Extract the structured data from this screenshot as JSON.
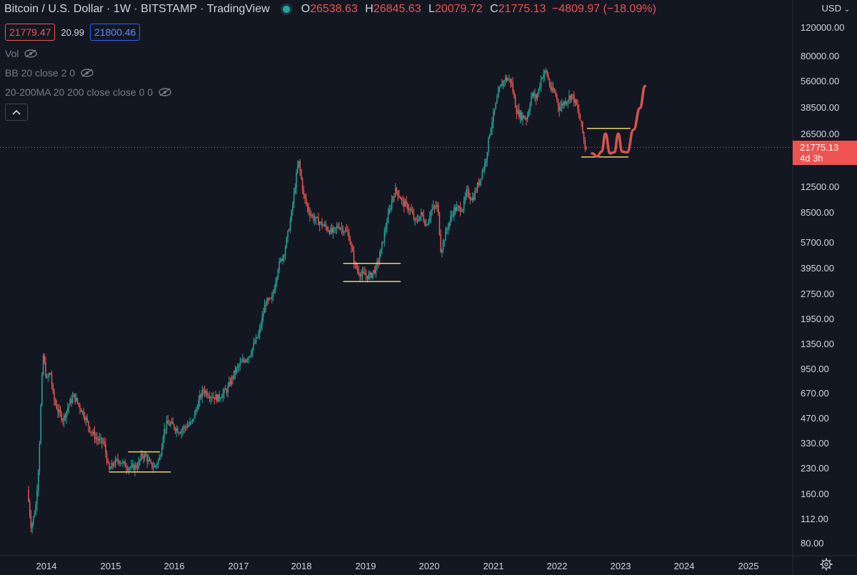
{
  "header": {
    "title": "Bitcoin / U.S. Dollar · 1W · BITSTAMP · TradingView",
    "ohlc": [
      {
        "k": "O",
        "v": "26538.63"
      },
      {
        "k": "H",
        "v": "26845.63"
      },
      {
        "k": "L",
        "v": "20079.72"
      },
      {
        "k": "C",
        "v": "21775.13"
      }
    ],
    "change": "−4809.97 (−18.09%)",
    "sell_price": "21779.47",
    "spread": "20.99",
    "buy_price": "21800.46",
    "currency": "USD"
  },
  "indicators": [
    {
      "label": "Vol"
    },
    {
      "label": "BB 20 close 2 0"
    },
    {
      "label": "20-200MA 20 200 close close 0 0"
    }
  ],
  "last_price": {
    "value": "21775.13",
    "countdown": "4d 3h"
  },
  "colors": {
    "background": "#131722",
    "up": "#26a69a",
    "down": "#ef5350",
    "levels": "#f0d264",
    "projection": "#d9534f",
    "price_line": "#ef5350"
  },
  "chart_data": {
    "type": "candlestick",
    "x_ticks": [
      "2014",
      "2015",
      "2016",
      "2017",
      "2018",
      "2019",
      "2020",
      "2021",
      "2022",
      "2023",
      "2024",
      "2025"
    ],
    "y_ticks": [
      "120000.00",
      "80000.00",
      "56000.00",
      "38500.00",
      "26500.00",
      "12500.00",
      "8500.00",
      "5700.00",
      "3950.00",
      "2750.00",
      "1950.00",
      "1350.00",
      "950.00",
      "670.00",
      "470.00",
      "330.00",
      "230.00",
      "160.00",
      "112.00",
      "80.00"
    ],
    "y_scale": "log",
    "y_range": [
      72,
      128000
    ],
    "x_range": [
      2013.72,
      2025.95
    ],
    "anchors": [
      [
        2013.72,
        170
      ],
      [
        2013.78,
        100
      ],
      [
        2013.85,
        130
      ],
      [
        2013.9,
        250
      ],
      [
        2013.94,
        700
      ],
      [
        2013.97,
        1150
      ],
      [
        2014.02,
        800
      ],
      [
        2014.08,
        900
      ],
      [
        2014.13,
        620
      ],
      [
        2014.2,
        520
      ],
      [
        2014.28,
        460
      ],
      [
        2014.38,
        580
      ],
      [
        2014.45,
        640
      ],
      [
        2014.5,
        590
      ],
      [
        2014.62,
        480
      ],
      [
        2014.7,
        400
      ],
      [
        2014.8,
        350
      ],
      [
        2014.92,
        330
      ],
      [
        2015.0,
        220
      ],
      [
        2015.05,
        240
      ],
      [
        2015.15,
        260
      ],
      [
        2015.25,
        240
      ],
      [
        2015.35,
        230
      ],
      [
        2015.45,
        240
      ],
      [
        2015.52,
        280
      ],
      [
        2015.58,
        270
      ],
      [
        2015.65,
        240
      ],
      [
        2015.72,
        235
      ],
      [
        2015.8,
        270
      ],
      [
        2015.85,
        380
      ],
      [
        2015.9,
        430
      ],
      [
        2015.97,
        430
      ],
      [
        2016.1,
        390
      ],
      [
        2016.3,
        440
      ],
      [
        2016.42,
        620
      ],
      [
        2016.48,
        700
      ],
      [
        2016.55,
        660
      ],
      [
        2016.7,
        620
      ],
      [
        2016.85,
        700
      ],
      [
        2016.97,
        900
      ],
      [
        2017.05,
        1000
      ],
      [
        2017.2,
        1150
      ],
      [
        2017.35,
        1550
      ],
      [
        2017.45,
        2400
      ],
      [
        2017.55,
        2500
      ],
      [
        2017.65,
        4000
      ],
      [
        2017.75,
        5000
      ],
      [
        2017.85,
        8000
      ],
      [
        2017.93,
        14000
      ],
      [
        2017.97,
        18000
      ],
      [
        2018.05,
        11000
      ],
      [
        2018.12,
        9000
      ],
      [
        2018.2,
        8000
      ],
      [
        2018.3,
        7500
      ],
      [
        2018.4,
        7000
      ],
      [
        2018.5,
        6500
      ],
      [
        2018.6,
        7200
      ],
      [
        2018.75,
        6400
      ],
      [
        2018.86,
        4000
      ],
      [
        2018.95,
        3600
      ],
      [
        2019.08,
        3500
      ],
      [
        2019.18,
        3900
      ],
      [
        2019.25,
        4800
      ],
      [
        2019.35,
        7500
      ],
      [
        2019.45,
        11000
      ],
      [
        2019.5,
        12000
      ],
      [
        2019.6,
        10000
      ],
      [
        2019.72,
        9000
      ],
      [
        2019.8,
        7500
      ],
      [
        2019.9,
        8500
      ],
      [
        2019.97,
        7200
      ],
      [
        2020.05,
        9000
      ],
      [
        2020.15,
        9500
      ],
      [
        2020.2,
        5000
      ],
      [
        2020.3,
        7000
      ],
      [
        2020.4,
        9000
      ],
      [
        2020.55,
        9300
      ],
      [
        2020.6,
        11500
      ],
      [
        2020.7,
        10500
      ],
      [
        2020.8,
        13500
      ],
      [
        2020.9,
        18000
      ],
      [
        2020.97,
        28000
      ],
      [
        2021.05,
        38000
      ],
      [
        2021.12,
        50000
      ],
      [
        2021.2,
        58000
      ],
      [
        2021.3,
        56000
      ],
      [
        2021.38,
        37000
      ],
      [
        2021.45,
        34000
      ],
      [
        2021.55,
        33000
      ],
      [
        2021.62,
        46000
      ],
      [
        2021.7,
        44000
      ],
      [
        2021.78,
        60000
      ],
      [
        2021.85,
        64000
      ],
      [
        2021.92,
        50000
      ],
      [
        2022.0,
        46000
      ],
      [
        2022.05,
        38000
      ],
      [
        2022.15,
        42000
      ],
      [
        2022.25,
        46000
      ],
      [
        2022.32,
        40000
      ],
      [
        2022.4,
        30000
      ],
      [
        2022.46,
        21775
      ]
    ],
    "levels": [
      {
        "x1": 2014.98,
        "x2": 2015.95,
        "price": 218
      },
      {
        "x1": 2015.28,
        "x2": 2015.78,
        "price": 290
      },
      {
        "x1": 2018.65,
        "x2": 2019.55,
        "price": 4200
      },
      {
        "x1": 2018.65,
        "x2": 2019.55,
        "price": 3250
      },
      {
        "x1": 2022.47,
        "x2": 2023.15,
        "price": 28500
      },
      {
        "x1": 2022.38,
        "x2": 2023.12,
        "price": 19000
      }
    ],
    "projection": [
      [
        2022.55,
        20000
      ],
      [
        2022.63,
        19200
      ],
      [
        2022.7,
        20500
      ],
      [
        2022.76,
        26500
      ],
      [
        2022.83,
        20000
      ],
      [
        2022.9,
        20300
      ],
      [
        2022.96,
        26500
      ],
      [
        2023.02,
        20500
      ],
      [
        2023.1,
        20300
      ],
      [
        2023.2,
        28000
      ],
      [
        2023.3,
        38000
      ],
      [
        2023.38,
        52000
      ]
    ],
    "last_close": 21775.13
  }
}
